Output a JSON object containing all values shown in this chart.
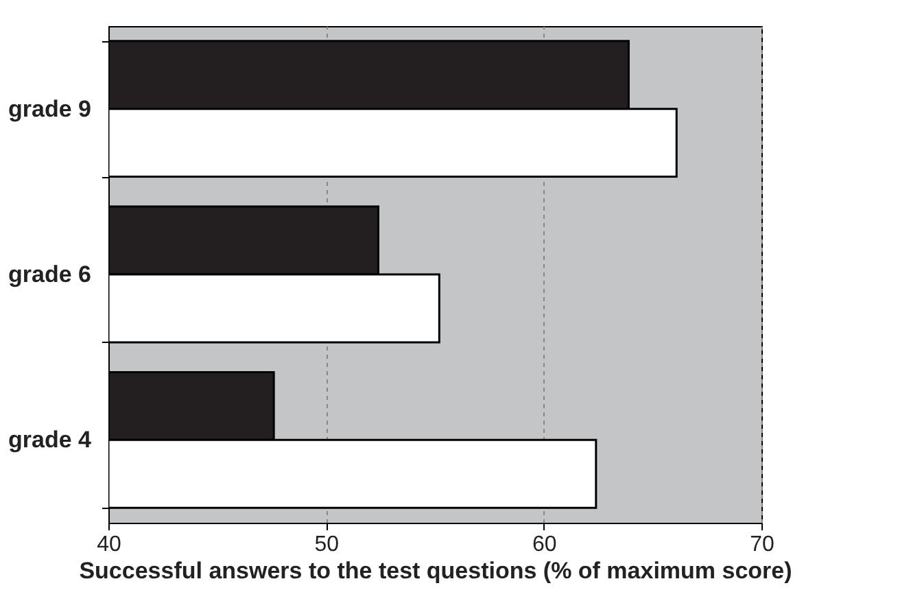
{
  "chart_data": {
    "type": "bar",
    "orientation": "horizontal",
    "xlabel": "Successful answers to the test questions (% of maximum score)",
    "categories": [
      "grade 9",
      "grade 6",
      "grade 4"
    ],
    "series": [
      {
        "color": "#231f20",
        "values": [
          63.9,
          52.4,
          47.6
        ]
      },
      {
        "color": "#ffffff",
        "values": [
          66.1,
          55.2,
          62.4
        ]
      }
    ],
    "xlim": [
      40,
      70
    ],
    "xticks": [
      40,
      50,
      60,
      70
    ],
    "grid": "x",
    "legend": false
  }
}
